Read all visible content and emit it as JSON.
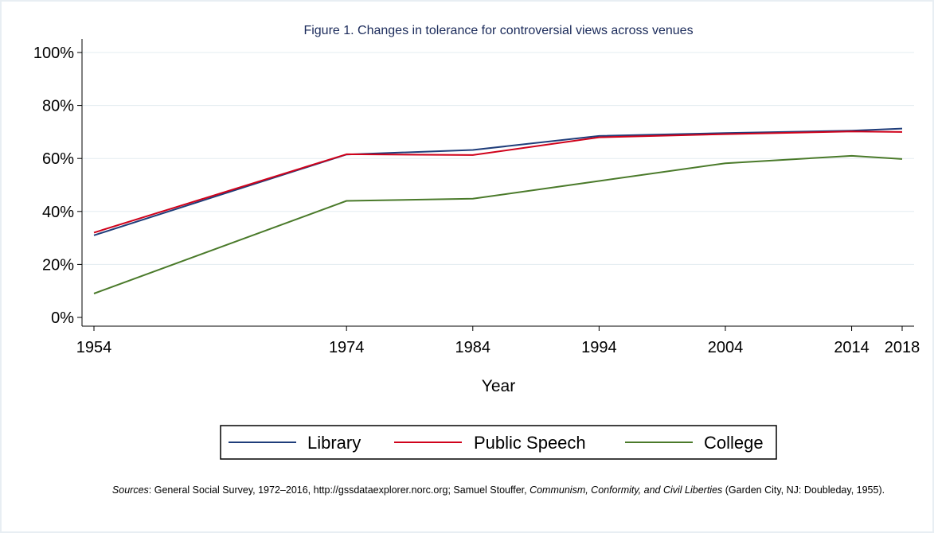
{
  "chart_data": {
    "type": "line",
    "title": "Figure 1. Changes in tolerance for controversial views across venues",
    "xlabel": "Year",
    "ylabel": "",
    "x": [
      1954,
      1974,
      1984,
      1994,
      2004,
      2014,
      2018
    ],
    "x_ticks": [
      "1954",
      "1974",
      "1984",
      "1994",
      "2004",
      "2014",
      "2018"
    ],
    "y_ticks": [
      "0%",
      "20%",
      "40%",
      "60%",
      "80%",
      "100%"
    ],
    "ylim": [
      0,
      100
    ],
    "xlim": [
      1954,
      2018
    ],
    "grid": true,
    "legend_position": "bottom",
    "series": [
      {
        "name": "Library",
        "color": "#1f3d7a",
        "values": [
          31,
          61.5,
          63.2,
          68.5,
          69.6,
          70.5,
          71.3
        ]
      },
      {
        "name": "Public Speech",
        "color": "#d0021b",
        "values": [
          32,
          61.6,
          61.3,
          68,
          69.2,
          70.2,
          70
        ]
      },
      {
        "name": "College",
        "color": "#4a7a2a",
        "values": [
          9,
          44,
          44.8,
          51.5,
          58.2,
          61,
          59.8
        ]
      }
    ]
  },
  "footnote": {
    "sources_label": "Sources",
    "text_a": ": General Social Survey, 1972–2016, http://gssdataexplorer.norc.org; Samuel Stouffer, ",
    "book_title": "Communism, Conformity, and Civil Liberties",
    "text_b": " (Garden City, NJ: Doubleday, 1955)."
  }
}
